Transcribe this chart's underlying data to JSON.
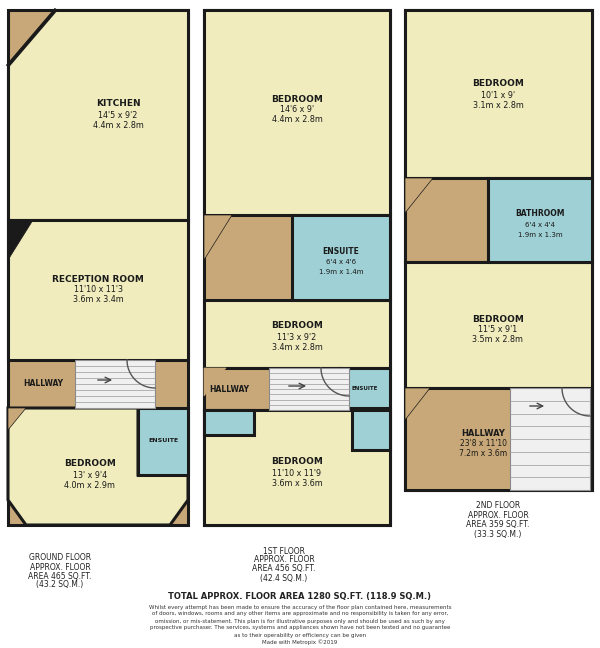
{
  "bg_color": "#ffffff",
  "yellow": "#f0ecbe",
  "tan": "#c8a878",
  "blue": "#9ed0d5",
  "stair_fill": "#f0f0f0",
  "wall": "#1a1a1a",
  "text_dark": "#1a1a1a",
  "rooms": {
    "gf_kitchen": {
      "label": "KITCHEN",
      "sub1": "14'5 x 9'2",
      "sub2": "4.4m x 2.8m"
    },
    "gf_reception": {
      "label": "RECEPTION ROOM",
      "sub1": "11'10 x 11'3",
      "sub2": "3.6m x 3.4m"
    },
    "gf_hallway": {
      "label": "HALLWAY",
      "sub1": "",
      "sub2": ""
    },
    "gf_ensuite": {
      "label": "ENSUITE",
      "sub1": "",
      "sub2": ""
    },
    "gf_bedroom": {
      "label": "BEDROOM",
      "sub1": "13' x 9'4",
      "sub2": "4.0m x 2.9m"
    },
    "ff_bedroom1": {
      "label": "BEDROOM",
      "sub1": "14'6 x 9'",
      "sub2": "4.4m x 2.8m"
    },
    "ff_ensuite1": {
      "label": "ENSUITE",
      "sub1": "6'4 x 4'6",
      "sub2": "1.9m x 1.4m"
    },
    "ff_bedroom2": {
      "label": "BEDROOM",
      "sub1": "11'3 x 9'2",
      "sub2": "3.4m x 2.8m"
    },
    "ff_ensuite2": {
      "label": "ENSUITE",
      "sub1": "",
      "sub2": ""
    },
    "ff_hallway": {
      "label": "HALLWAY",
      "sub1": "",
      "sub2": ""
    },
    "ff_bedroom3": {
      "label": "BEDROOM",
      "sub1": "11'10 x 11'9",
      "sub2": "3.6m x 3.6m"
    },
    "sf_bedroom4": {
      "label": "BEDROOM",
      "sub1": "10'1 x 9'",
      "sub2": "3.1m x 2.8m"
    },
    "sf_bathroom": {
      "label": "BATHROOM",
      "sub1": "6'4 x 4'4",
      "sub2": "1.9m x 1.3m"
    },
    "sf_bedroom5": {
      "label": "BEDROOM",
      "sub1": "11'5 x 9'1",
      "sub2": "3.5m x 2.8m"
    },
    "sf_hallway": {
      "label": "HALLWAY",
      "sub1": "23'8 x 11'10",
      "sub2": "7.2m x 3.6m"
    }
  },
  "footer": {
    "gf": "GROUND FLOOR\nAPPROX. FLOOR\nAREA 465 SQ.FT.\n(43.2 SQ.M.)",
    "ff": "1ST FLOOR\nAPPROX. FLOOR\nAREA 456 SQ.FT.\n(42.4 SQ.M.)",
    "sf": "2ND FLOOR\nAPPROX. FLOOR\nAREA 359 SQ.FT.\n(33.3 SQ.M.)",
    "total": "TOTAL APPROX. FLOOR AREA 1280 SQ.FT. (118.9 SQ.M.)",
    "disclaimer": "Whilst every attempt has been made to ensure the accuracy of the floor plan contained here, measurements\nof doors, windows, rooms and any other items are approximate and no responsibility is taken for any error,\nomission, or mis-statement. This plan is for illustrative purposes only and should be used as such by any\nprospective purchaser. The services, systems and appliances shown have not been tested and no guarantee\nas to their operability or efficiency can be given\nMade with Metropix ©2019"
  }
}
